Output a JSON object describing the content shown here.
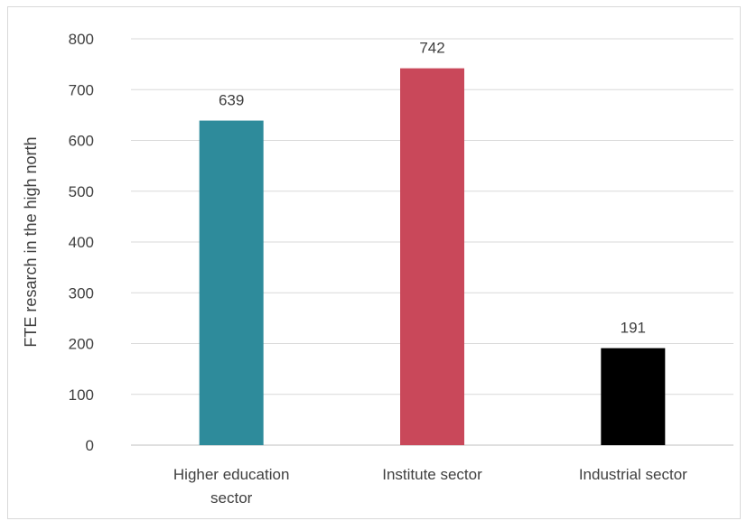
{
  "chart_data": {
    "type": "bar",
    "ylabel": "FTE resarch in the high north",
    "xlabel": "",
    "title": "",
    "ylim": [
      0,
      800
    ],
    "yticks": [
      0,
      100,
      200,
      300,
      400,
      500,
      600,
      700,
      800
    ],
    "grid": true,
    "legend": "none",
    "categories": [
      [
        "Higher education",
        "sector"
      ],
      [
        "Institute sector"
      ],
      [
        "Industrial sector"
      ]
    ],
    "values": [
      639,
      742,
      191
    ],
    "colors": [
      "#2E8B9B",
      "#C9485A",
      "#000000"
    ],
    "gridColor": "#d9d9d9",
    "axisColor": "#bfbfbf"
  }
}
